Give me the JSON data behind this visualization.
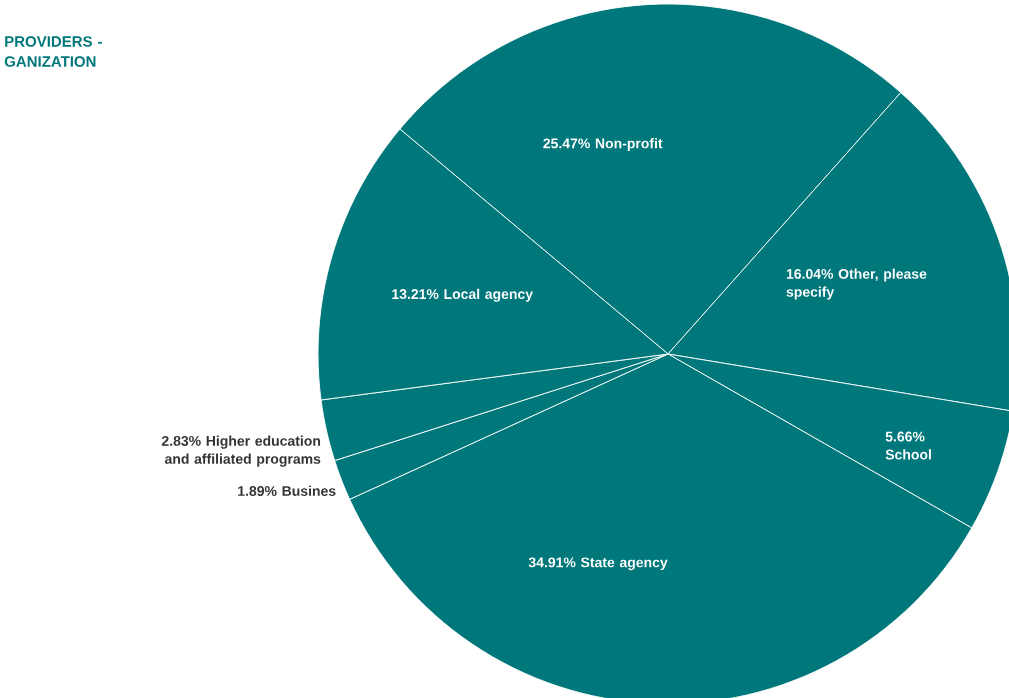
{
  "chart_data": {
    "type": "pie",
    "title": "PROVIDERS - GANIZATION",
    "categories": [
      "Non-profit",
      "Other, please specify",
      "School",
      "State agency",
      "Busines",
      "Higher education and affiliated programs",
      "Local agency"
    ],
    "values": [
      25.47,
      16.04,
      5.66,
      34.91,
      1.89,
      2.83,
      13.21
    ],
    "value_labels": [
      "25.47%",
      "16.04%",
      "5.66%",
      "34.91%",
      "1.89%",
      "2.83%",
      "13.21%"
    ],
    "colors": [
      "#00777a",
      "#00777a",
      "#00777a",
      "#00777a",
      "#00777a",
      "#00777a",
      "#00777a"
    ]
  }
}
